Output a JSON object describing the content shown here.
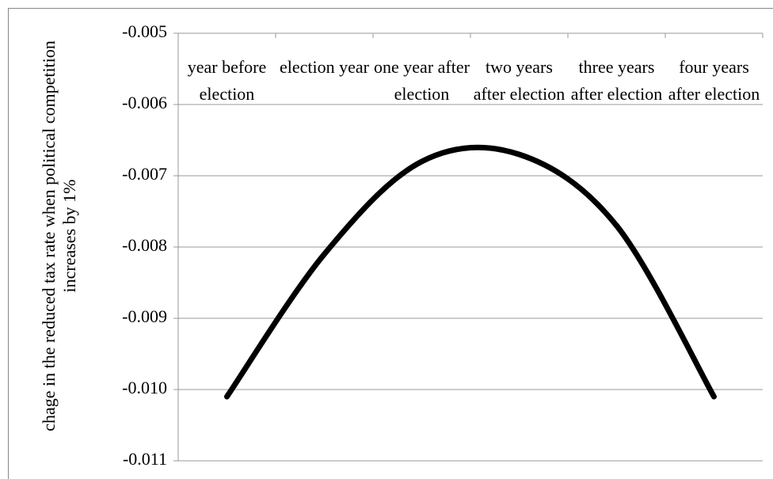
{
  "chart_data": {
    "type": "line",
    "y_label": "chage in the reduced tax rate when political competition increases by 1%",
    "categories": [
      "year before election",
      "election year",
      "one year after election",
      "two years after election",
      "three years after election",
      "four years after election"
    ],
    "series": [
      {
        "color": "#000000",
        "values": [
          -0.0101,
          -0.0081,
          -0.0068,
          -0.0067,
          -0.0077,
          -0.0101
        ]
      }
    ],
    "ylim": [
      -0.011,
      -0.005
    ],
    "yticks": [
      -0.011,
      {
        "value": -0.01,
        "label": "-0.010"
      },
      -0.009,
      -0.008,
      -0.007,
      -0.006,
      -0.005
    ],
    "grid": true,
    "smooth": true
  }
}
